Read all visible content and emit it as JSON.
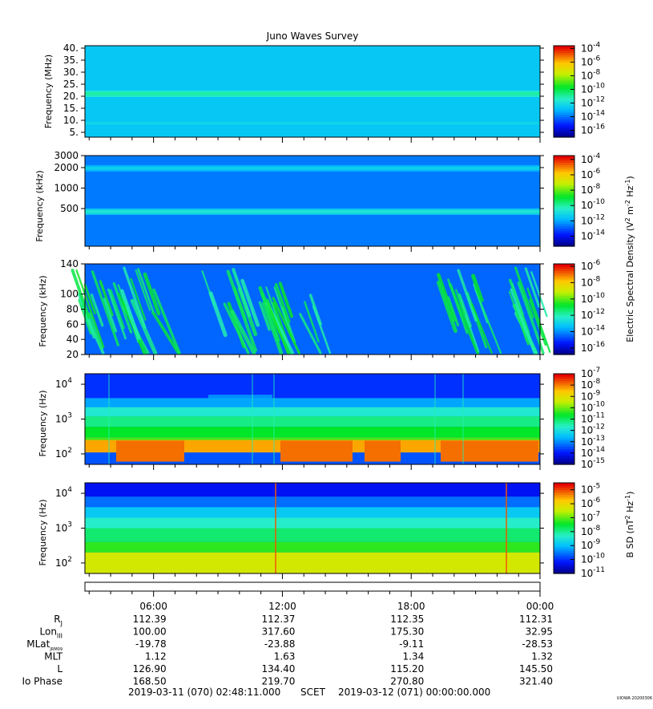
{
  "title": "Juno Waves Survey",
  "footer_id": "UIOWA 20200306",
  "colors": {
    "frame": "#000000",
    "text": "#000000"
  },
  "chart_data": [
    {
      "type": "heatmap",
      "id": "p1",
      "ylabel": "Frequency (MHz)",
      "yticks": [
        "40.",
        "35.",
        "30.",
        "25.",
        "20.",
        "15.",
        "10.",
        "5."
      ],
      "yrange": [
        3,
        41
      ],
      "cbar_ticks": [
        "-4",
        "-6",
        "-8",
        "-10",
        "-12",
        "-14",
        "-16"
      ],
      "cbar_range": [
        -17,
        -3.6
      ],
      "features": [
        {
          "kind": "band",
          "at": 21,
          "level": -11.5
        },
        {
          "kind": "band",
          "at": 8.8,
          "level": -12.8
        }
      ],
      "background_level": -12.7
    },
    {
      "type": "heatmap",
      "id": "p2",
      "ylabel": "Frequency (kHz)",
      "yticks": [
        "3000",
        "2000",
        "1000",
        "500"
      ],
      "yrange": [
        140,
        3000
      ],
      "cbar_ticks": [
        "-4",
        "-6",
        "-8",
        "-10",
        "-12",
        "-14"
      ],
      "cbar_range": [
        -15.3,
        -3.5
      ],
      "features": [
        {
          "kind": "band",
          "at": 1950,
          "level": -11.8
        },
        {
          "kind": "band",
          "at": 450,
          "level": -11.2
        }
      ],
      "background_level": -12.6
    },
    {
      "type": "heatmap",
      "id": "p3",
      "ylabel": "Frequency (kHz)",
      "yticks": [
        "140",
        "100",
        "80",
        "60",
        "40",
        "20"
      ],
      "yrange": [
        20,
        140
      ],
      "cbar_ticks": [
        "-6",
        "-8",
        "-10",
        "-12",
        "-14",
        "-16"
      ],
      "cbar_range": [
        -16.8,
        -5.7
      ],
      "features": [
        {
          "kind": "arcs"
        }
      ],
      "background_level": -14.5
    },
    {
      "type": "heatmap",
      "id": "p4",
      "ylabel": "Frequency (Hz)",
      "yticks": [
        "10",
        "10",
        "10"
      ],
      "ytick_exps": [
        "4",
        "3",
        "2"
      ],
      "yrange": [
        50,
        20000
      ],
      "cbar_ticks": [
        "-7",
        "-8",
        "-9",
        "-10",
        "-11",
        "-12",
        "-13",
        "-14",
        "-15"
      ],
      "cbar_range": [
        -15,
        -7
      ],
      "features": [
        {
          "kind": "electric_lowfreq"
        }
      ],
      "background_level": -13.5
    },
    {
      "type": "heatmap",
      "id": "p5",
      "ylabel": "Frequency (Hz)",
      "yticks": [
        "10",
        "10",
        "10"
      ],
      "ytick_exps": [
        "4",
        "3",
        "2"
      ],
      "yrange": [
        50,
        20000
      ],
      "cbar_ticks": [
        "-5",
        "-6",
        "-7",
        "-8",
        "-9",
        "-10",
        "-11"
      ],
      "cbar_range": [
        -11,
        -4.5
      ],
      "features": [
        {
          "kind": "magnetic_lowfreq"
        }
      ],
      "background_level": -9.5
    }
  ],
  "cbar_base": "10",
  "cbar_label_e": "Electric Spectral Density (V",
  "cbar_label_e_mid": " m",
  "cbar_label_e_mid2": " Hz",
  "cbar_label_b": "B SD (nT",
  "cbar_label_b_mid": " Hz",
  "exp_2": "2",
  "exp_m2": "-2",
  "exp_m1": "-1",
  "close_paren": ")",
  "time_axis": {
    "labels": [
      "06:00",
      "12:00",
      "18:00",
      "00:00"
    ],
    "range_hours": [
      2.803,
      24.0
    ],
    "label_hours": [
      6,
      12,
      18,
      24
    ]
  },
  "ephemeris": {
    "rows": [
      {
        "label": "R",
        "sub": "J",
        "values": [
          "112.39",
          "112.37",
          "112.35",
          "112.31"
        ]
      },
      {
        "label": "Lon",
        "sub": "III",
        "values": [
          "100.00",
          "317.60",
          "175.30",
          "32.95"
        ]
      },
      {
        "label": "MLat",
        "sub": "JRM09",
        "values": [
          "-19.78",
          "-23.88",
          "-9.11",
          "-28.53"
        ]
      },
      {
        "label": "MLT",
        "sub": "",
        "values": [
          "1.12",
          "1.63",
          "1.34",
          "1.32"
        ]
      },
      {
        "label": "L",
        "sub": "",
        "values": [
          "126.90",
          "134.40",
          "115.20",
          "145.50"
        ]
      },
      {
        "label": "Io Phase",
        "sub": "",
        "values": [
          "168.50",
          "219.70",
          "270.80",
          "321.40"
        ]
      }
    ]
  },
  "time_range": {
    "start": "2019-03-11 (070) 02:48:11.000",
    "scet": "SCET",
    "end": "2019-03-12 (071) 00:00:00.000"
  }
}
